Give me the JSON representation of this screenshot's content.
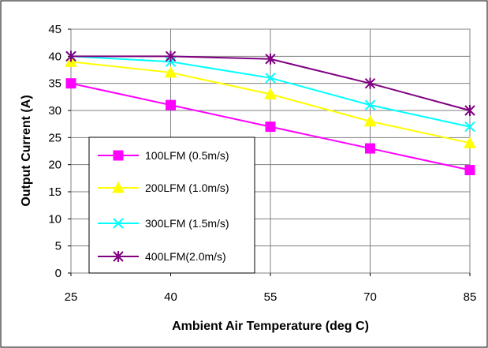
{
  "chart_data": {
    "type": "line",
    "title": "",
    "xlabel": "Ambient Air Temperature (deg C)",
    "ylabel": "Output Current (A)",
    "x": [
      25,
      40,
      55,
      70,
      85
    ],
    "xticks": [
      "25",
      "40",
      "55",
      "70",
      "85"
    ],
    "yticks": [
      "0",
      "5",
      "10",
      "15",
      "20",
      "25",
      "30",
      "35",
      "40",
      "45"
    ],
    "ylim": [
      0,
      45
    ],
    "grid": "vertical-and-horizontal",
    "legend_position": "lower-left",
    "series": [
      {
        "name": "100LFM (0.5m/s)",
        "values": [
          35,
          31,
          27,
          23,
          19
        ],
        "color": "#FF00FF",
        "marker": "square"
      },
      {
        "name": "200LFM (1.0m/s)",
        "values": [
          39,
          37,
          33,
          28,
          24
        ],
        "color": "#FFFF00",
        "marker": "triangle"
      },
      {
        "name": "300LFM (1.5m/s)",
        "values": [
          40,
          39,
          36,
          31,
          27
        ],
        "color": "#00FFFF",
        "marker": "x"
      },
      {
        "name": "400LFM(2.0m/s)",
        "values": [
          40,
          40,
          39.5,
          35,
          30
        ],
        "color": "#800080",
        "marker": "asterisk"
      }
    ]
  }
}
